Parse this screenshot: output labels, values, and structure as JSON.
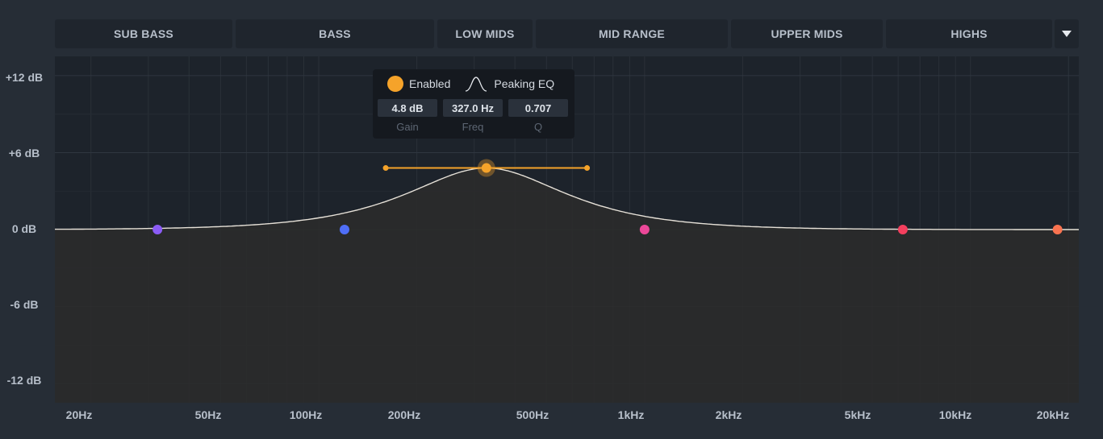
{
  "bands": [
    {
      "label": "SUB BASS"
    },
    {
      "label": "BASS"
    },
    {
      "label": "LOW MIDS"
    },
    {
      "label": "MID RANGE"
    },
    {
      "label": "UPPER MIDS"
    },
    {
      "label": "HIGHS"
    }
  ],
  "y_axis": {
    "labels": [
      "+12 dB",
      "+6 dB",
      "0 dB",
      "-6 dB",
      "-12 dB"
    ],
    "values": [
      12,
      6,
      0,
      -6,
      -12
    ],
    "range": [
      -13.5,
      13.5
    ]
  },
  "x_axis": {
    "labels": [
      "20Hz",
      "50Hz",
      "100Hz",
      "200Hz",
      "500Hz",
      "1kHz",
      "2kHz",
      "5kHz",
      "10kHz",
      "20kHz"
    ],
    "values": [
      20,
      50,
      100,
      200,
      500,
      1000,
      2000,
      5000,
      10000,
      20000
    ],
    "range_hz": [
      15.5,
      21500
    ]
  },
  "filters": [
    {
      "freq": 32,
      "gain": 0,
      "color": "#8b5cf6"
    },
    {
      "freq": 120,
      "gain": 0,
      "color": "#4f6ef7"
    },
    {
      "freq": 327,
      "gain": 4.8,
      "q": 0.707,
      "color": "#f5a32a",
      "selected": true
    },
    {
      "freq": 1000,
      "gain": 0,
      "color": "#ec4899"
    },
    {
      "freq": 6200,
      "gain": 0,
      "color": "#f43f5e"
    },
    {
      "freq": 18500,
      "gain": 0,
      "color": "#f97350"
    }
  ],
  "popup": {
    "enabled_label": "Enabled",
    "type_label": "Peaking EQ",
    "gain_value": "4.8 dB",
    "freq_value": "327.0 Hz",
    "q_value": "0.707",
    "gain_label": "Gain",
    "freq_label": "Freq",
    "q_label": "Q"
  },
  "colors": {
    "accent": "#f5a32a",
    "curve": "#e6e1d8",
    "fill": "#2b2b2b",
    "grid": "#2a3038"
  }
}
